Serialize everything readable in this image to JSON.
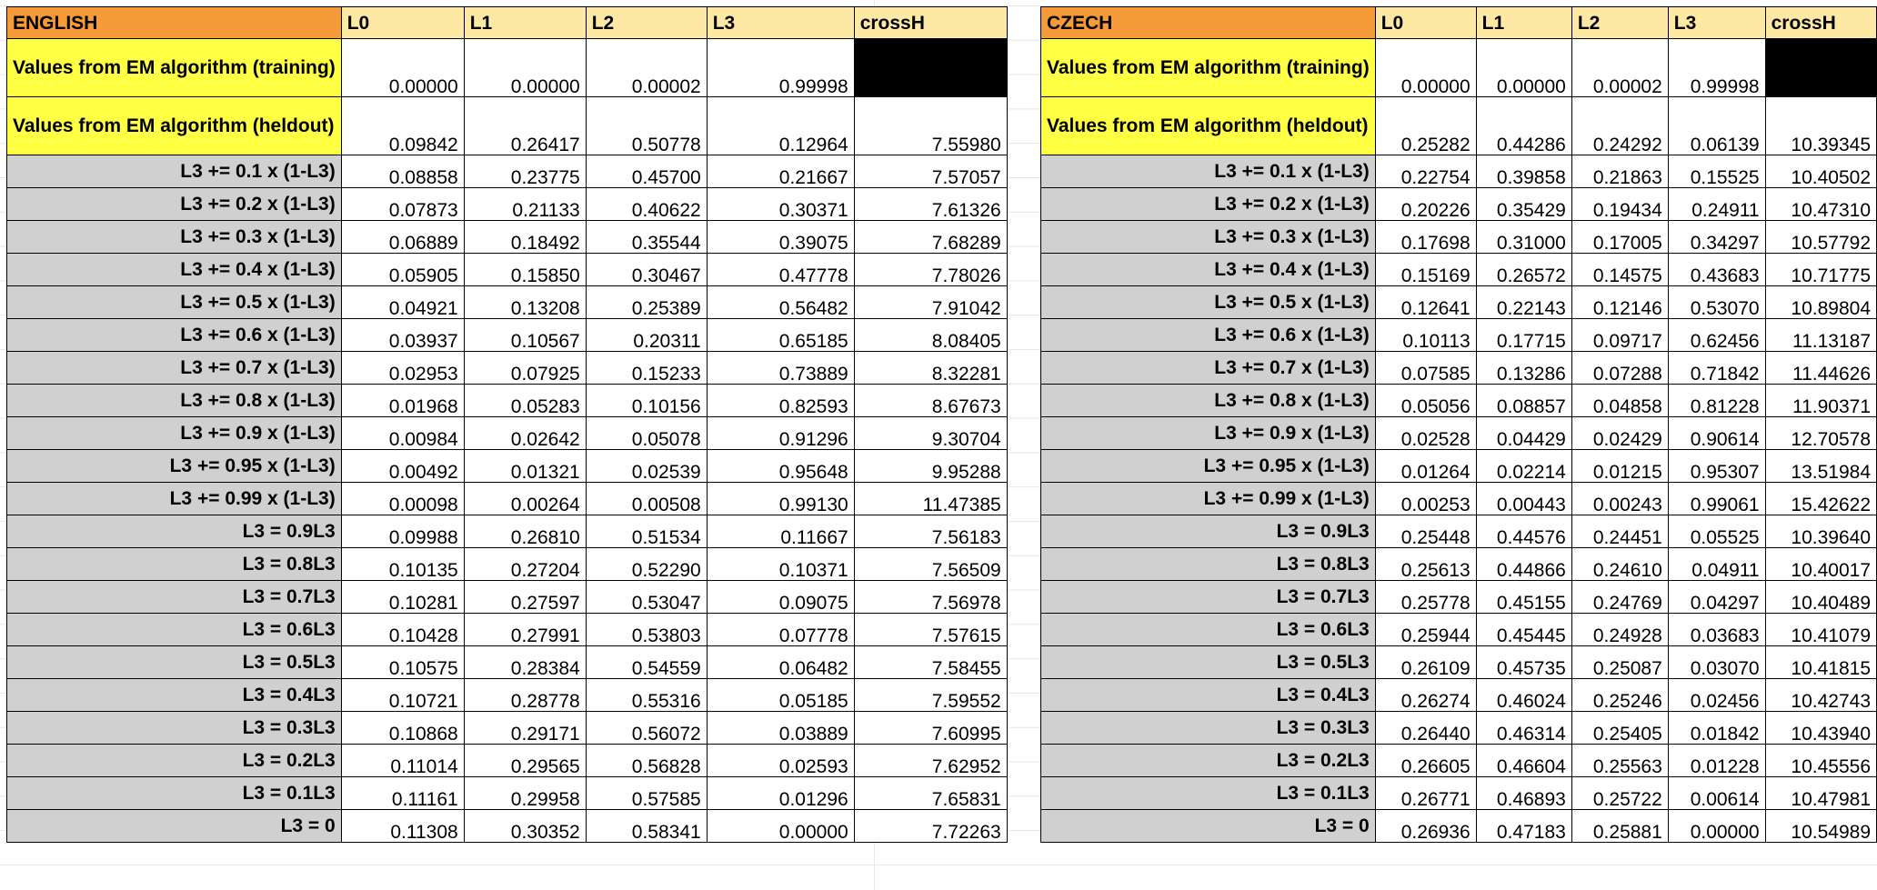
{
  "tables": [
    {
      "language": "ENGLISH",
      "columns": [
        "L0",
        "L1",
        "L2",
        "L3",
        "crossH"
      ],
      "em_rows": [
        {
          "label": "Values from EM algorithm (training)",
          "values": [
            "0.00000",
            "0.00000",
            "0.00002",
            "0.99998",
            ""
          ]
        },
        {
          "label": "Values from EM algorithm (heldout)",
          "values": [
            "0.09842",
            "0.26417",
            "0.50778",
            "0.12964",
            "7.55980"
          ]
        }
      ],
      "rows": [
        {
          "label": "L3 += 0.1 x (1-L3)",
          "values": [
            "0.08858",
            "0.23775",
            "0.45700",
            "0.21667",
            "7.57057"
          ]
        },
        {
          "label": "L3 += 0.2 x (1-L3)",
          "values": [
            "0.07873",
            "0.21133",
            "0.40622",
            "0.30371",
            "7.61326"
          ]
        },
        {
          "label": "L3 += 0.3 x (1-L3)",
          "values": [
            "0.06889",
            "0.18492",
            "0.35544",
            "0.39075",
            "7.68289"
          ]
        },
        {
          "label": "L3 += 0.4 x (1-L3)",
          "values": [
            "0.05905",
            "0.15850",
            "0.30467",
            "0.47778",
            "7.78026"
          ]
        },
        {
          "label": "L3 += 0.5 x (1-L3)",
          "values": [
            "0.04921",
            "0.13208",
            "0.25389",
            "0.56482",
            "7.91042"
          ]
        },
        {
          "label": "L3 += 0.6 x (1-L3)",
          "values": [
            "0.03937",
            "0.10567",
            "0.20311",
            "0.65185",
            "8.08405"
          ]
        },
        {
          "label": "L3 += 0.7 x (1-L3)",
          "values": [
            "0.02953",
            "0.07925",
            "0.15233",
            "0.73889",
            "8.32281"
          ]
        },
        {
          "label": "L3 += 0.8 x (1-L3)",
          "values": [
            "0.01968",
            "0.05283",
            "0.10156",
            "0.82593",
            "8.67673"
          ]
        },
        {
          "label": "L3 += 0.9 x (1-L3)",
          "values": [
            "0.00984",
            "0.02642",
            "0.05078",
            "0.91296",
            "9.30704"
          ]
        },
        {
          "label": "L3 += 0.95 x (1-L3)",
          "values": [
            "0.00492",
            "0.01321",
            "0.02539",
            "0.95648",
            "9.95288"
          ]
        },
        {
          "label": "L3 += 0.99 x (1-L3)",
          "values": [
            "0.00098",
            "0.00264",
            "0.00508",
            "0.99130",
            "11.47385"
          ]
        },
        {
          "label": "L3 = 0.9L3",
          "values": [
            "0.09988",
            "0.26810",
            "0.51534",
            "0.11667",
            "7.56183"
          ]
        },
        {
          "label": "L3 = 0.8L3",
          "values": [
            "0.10135",
            "0.27204",
            "0.52290",
            "0.10371",
            "7.56509"
          ]
        },
        {
          "label": "L3 = 0.7L3",
          "values": [
            "0.10281",
            "0.27597",
            "0.53047",
            "0.09075",
            "7.56978"
          ]
        },
        {
          "label": "L3 = 0.6L3",
          "values": [
            "0.10428",
            "0.27991",
            "0.53803",
            "0.07778",
            "7.57615"
          ]
        },
        {
          "label": "L3 = 0.5L3",
          "values": [
            "0.10575",
            "0.28384",
            "0.54559",
            "0.06482",
            "7.58455"
          ]
        },
        {
          "label": "L3 = 0.4L3",
          "values": [
            "0.10721",
            "0.28778",
            "0.55316",
            "0.05185",
            "7.59552"
          ]
        },
        {
          "label": "L3 = 0.3L3",
          "values": [
            "0.10868",
            "0.29171",
            "0.56072",
            "0.03889",
            "7.60995"
          ]
        },
        {
          "label": "L3 = 0.2L3",
          "values": [
            "0.11014",
            "0.29565",
            "0.56828",
            "0.02593",
            "7.62952"
          ]
        },
        {
          "label": "L3 = 0.1L3",
          "values": [
            "0.11161",
            "0.29958",
            "0.57585",
            "0.01296",
            "7.65831"
          ]
        },
        {
          "label": "L3 = 0",
          "values": [
            "0.11308",
            "0.30352",
            "0.58341",
            "0.00000",
            "7.72263"
          ]
        }
      ]
    },
    {
      "language": "CZECH",
      "columns": [
        "L0",
        "L1",
        "L2",
        "L3",
        "crossH"
      ],
      "em_rows": [
        {
          "label": "Values from EM algorithm (training)",
          "values": [
            "0.00000",
            "0.00000",
            "0.00002",
            "0.99998",
            ""
          ]
        },
        {
          "label": "Values from EM algorithm (heldout)",
          "values": [
            "0.25282",
            "0.44286",
            "0.24292",
            "0.06139",
            "10.39345"
          ]
        }
      ],
      "rows": [
        {
          "label": "L3 += 0.1 x (1-L3)",
          "values": [
            "0.22754",
            "0.39858",
            "0.21863",
            "0.15525",
            "10.40502"
          ]
        },
        {
          "label": "L3 += 0.2 x (1-L3)",
          "values": [
            "0.20226",
            "0.35429",
            "0.19434",
            "0.24911",
            "10.47310"
          ]
        },
        {
          "label": "L3 += 0.3 x (1-L3)",
          "values": [
            "0.17698",
            "0.31000",
            "0.17005",
            "0.34297",
            "10.57792"
          ]
        },
        {
          "label": "L3 += 0.4 x (1-L3)",
          "values": [
            "0.15169",
            "0.26572",
            "0.14575",
            "0.43683",
            "10.71775"
          ]
        },
        {
          "label": "L3 += 0.5 x (1-L3)",
          "values": [
            "0.12641",
            "0.22143",
            "0.12146",
            "0.53070",
            "10.89804"
          ]
        },
        {
          "label": "L3 += 0.6 x (1-L3)",
          "values": [
            "0.10113",
            "0.17715",
            "0.09717",
            "0.62456",
            "11.13187"
          ]
        },
        {
          "label": "L3 += 0.7 x (1-L3)",
          "values": [
            "0.07585",
            "0.13286",
            "0.07288",
            "0.71842",
            "11.44626"
          ]
        },
        {
          "label": "L3 += 0.8 x (1-L3)",
          "values": [
            "0.05056",
            "0.08857",
            "0.04858",
            "0.81228",
            "11.90371"
          ]
        },
        {
          "label": "L3 += 0.9 x (1-L3)",
          "values": [
            "0.02528",
            "0.04429",
            "0.02429",
            "0.90614",
            "12.70578"
          ]
        },
        {
          "label": "L3 += 0.95 x (1-L3)",
          "values": [
            "0.01264",
            "0.02214",
            "0.01215",
            "0.95307",
            "13.51984"
          ]
        },
        {
          "label": "L3 += 0.99 x (1-L3)",
          "values": [
            "0.00253",
            "0.00443",
            "0.00243",
            "0.99061",
            "15.42622"
          ]
        },
        {
          "label": "L3 = 0.9L3",
          "values": [
            "0.25448",
            "0.44576",
            "0.24451",
            "0.05525",
            "10.39640"
          ]
        },
        {
          "label": "L3 = 0.8L3",
          "values": [
            "0.25613",
            "0.44866",
            "0.24610",
            "0.04911",
            "10.40017"
          ]
        },
        {
          "label": "L3 = 0.7L3",
          "values": [
            "0.25778",
            "0.45155",
            "0.24769",
            "0.04297",
            "10.40489"
          ]
        },
        {
          "label": "L3 = 0.6L3",
          "values": [
            "0.25944",
            "0.45445",
            "0.24928",
            "0.03683",
            "10.41079"
          ]
        },
        {
          "label": "L3 = 0.5L3",
          "values": [
            "0.26109",
            "0.45735",
            "0.25087",
            "0.03070",
            "10.41815"
          ]
        },
        {
          "label": "L3 = 0.4L3",
          "values": [
            "0.26274",
            "0.46024",
            "0.25246",
            "0.02456",
            "10.42743"
          ]
        },
        {
          "label": "L3 = 0.3L3",
          "values": [
            "0.26440",
            "0.46314",
            "0.25405",
            "0.01842",
            "10.43940"
          ]
        },
        {
          "label": "L3 = 0.2L3",
          "values": [
            "0.26605",
            "0.46604",
            "0.25563",
            "0.01228",
            "10.45556"
          ]
        },
        {
          "label": "L3 = 0.1L3",
          "values": [
            "0.26771",
            "0.46893",
            "0.25722",
            "0.00614",
            "10.47981"
          ]
        },
        {
          "label": "L3 = 0",
          "values": [
            "0.26936",
            "0.47183",
            "0.25881",
            "0.00000",
            "10.54989"
          ]
        }
      ]
    }
  ]
}
